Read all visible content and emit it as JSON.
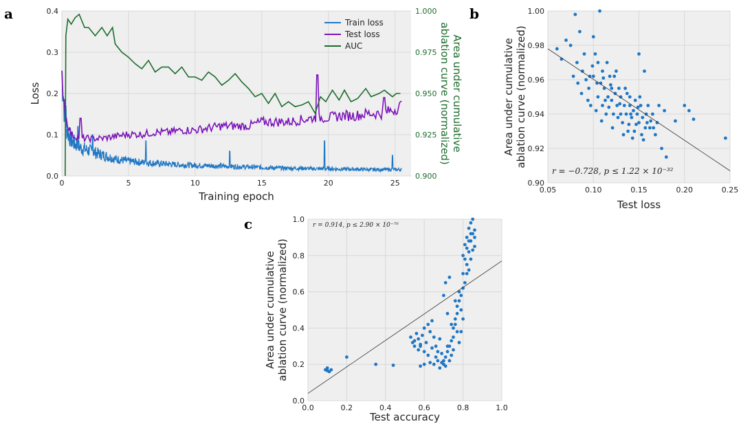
{
  "chart_data": [
    {
      "panel_label": "a",
      "type": "line",
      "xlabel": "Training epoch",
      "ylabel": "Loss",
      "y2label": "Area under cumulative ablation curve (normalized)",
      "xlim": [
        0,
        26.2
      ],
      "ylim": [
        0,
        0.4
      ],
      "y2lim": [
        0.9,
        1.0
      ],
      "xticks": [
        "0",
        "5",
        "10",
        "15",
        "20",
        "25"
      ],
      "yticks": [
        "0.0",
        "0.1",
        "0.2",
        "0.3",
        "0.4"
      ],
      "y2ticks": [
        "0.900",
        "0.925",
        "0.950",
        "0.975",
        "1.000"
      ],
      "grid": true,
      "legend_position": "top-right",
      "colors": {
        "train": "#1f77c4",
        "test": "#7a12b8",
        "auc": "#1b6b2c"
      },
      "series": [
        {
          "name": "Train loss",
          "axis": "left",
          "x": [
            0,
            0.1,
            0.2,
            0.3,
            0.5,
            0.7,
            1,
            1.5,
            2,
            2.5,
            3,
            3.5,
            4,
            5,
            6,
            7,
            8,
            9,
            10,
            11,
            12,
            13,
            14,
            15,
            16,
            17,
            18,
            19,
            20,
            21,
            22,
            23,
            24,
            25,
            25.5
          ],
          "y": [
            0.25,
            0.2,
            0.15,
            0.12,
            0.1,
            0.085,
            0.075,
            0.065,
            0.06,
            0.055,
            0.05,
            0.045,
            0.04,
            0.035,
            0.032,
            0.03,
            0.028,
            0.026,
            0.025,
            0.024,
            0.023,
            0.022,
            0.021,
            0.02,
            0.019,
            0.018,
            0.018,
            0.017,
            0.017,
            0.016,
            0.016,
            0.015,
            0.015,
            0.015,
            0.015
          ],
          "spikes": [
            [
              0.3,
              0.17
            ],
            [
              1.2,
              0.12
            ],
            [
              2.3,
              0.1
            ],
            [
              6.3,
              0.085
            ],
            [
              12.6,
              0.06
            ],
            [
              19.7,
              0.085
            ],
            [
              24.8,
              0.05
            ]
          ]
        },
        {
          "name": "Test loss",
          "axis": "left",
          "x": [
            0,
            0.1,
            0.2,
            0.3,
            0.5,
            0.7,
            1,
            1.5,
            2,
            3,
            4,
            5,
            6,
            7,
            8,
            9,
            10,
            11,
            12,
            13,
            14,
            15,
            16,
            17,
            18,
            19,
            20,
            21,
            22,
            23,
            24,
            25,
            25.5
          ],
          "y": [
            0.24,
            0.2,
            0.17,
            0.14,
            0.12,
            0.1,
            0.095,
            0.09,
            0.09,
            0.09,
            0.095,
            0.1,
            0.1,
            0.105,
            0.105,
            0.11,
            0.11,
            0.115,
            0.12,
            0.12,
            0.12,
            0.13,
            0.13,
            0.13,
            0.135,
            0.14,
            0.14,
            0.145,
            0.145,
            0.15,
            0.15,
            0.16,
            0.17
          ],
          "spikes": [
            [
              1.4,
              0.14
            ],
            [
              19.2,
              0.245
            ],
            [
              24.2,
              0.19
            ]
          ]
        },
        {
          "name": "AUC",
          "axis": "right",
          "x": [
            0.25,
            0.3,
            0.45,
            0.7,
            1.0,
            1.3,
            1.7,
            2.0,
            2.5,
            3.0,
            3.4,
            3.8,
            4.0,
            4.5,
            5.0,
            5.5,
            6.0,
            6.5,
            7.0,
            7.5,
            8.0,
            8.5,
            9.0,
            9.5,
            10.0,
            10.5,
            11.0,
            11.5,
            12.0,
            12.5,
            13.0,
            13.5,
            14.0,
            14.5,
            15.0,
            15.5,
            16.0,
            16.5,
            17.0,
            17.5,
            18.0,
            18.5,
            19.0,
            19.4,
            19.8,
            20.3,
            20.8,
            21.2,
            21.7,
            22.2,
            22.8,
            23.2,
            23.8,
            24.2,
            24.8,
            25.1,
            25.4
          ],
          "y": [
            0.9,
            0.985,
            0.995,
            0.992,
            0.996,
            0.998,
            0.99,
            0.99,
            0.985,
            0.99,
            0.985,
            0.99,
            0.98,
            0.975,
            0.972,
            0.968,
            0.965,
            0.97,
            0.963,
            0.966,
            0.966,
            0.962,
            0.966,
            0.96,
            0.96,
            0.958,
            0.963,
            0.96,
            0.955,
            0.958,
            0.962,
            0.957,
            0.953,
            0.948,
            0.95,
            0.944,
            0.95,
            0.942,
            0.945,
            0.942,
            0.943,
            0.945,
            0.938,
            0.948,
            0.945,
            0.952,
            0.946,
            0.952,
            0.945,
            0.947,
            0.953,
            0.948,
            0.95,
            0.952,
            0.948,
            0.95,
            0.95
          ]
        }
      ]
    },
    {
      "panel_label": "b",
      "type": "scatter",
      "xlabel": "Test loss",
      "ylabel": "Area under cumulative ablation curve (normalized)",
      "xlim": [
        0.05,
        0.25
      ],
      "ylim": [
        0.9,
        1.0
      ],
      "xticks": [
        "0.05",
        "0.10",
        "0.15",
        "0.20",
        "0.25"
      ],
      "yticks": [
        "0.90",
        "0.92",
        "0.94",
        "0.96",
        "0.98",
        "1.00"
      ],
      "grid": true,
      "color": "#1f77c4",
      "annotation": "r = −0.728, p ≤ 1.22 × 10⁻³²",
      "fit_line": {
        "x": [
          0.05,
          0.25
        ],
        "y": [
          0.978,
          0.907
        ]
      },
      "points": [
        [
          0.07,
          0.983
        ],
        [
          0.075,
          0.98
        ],
        [
          0.08,
          0.998
        ],
        [
          0.082,
          0.97
        ],
        [
          0.085,
          0.988
        ],
        [
          0.088,
          0.965
        ],
        [
          0.09,
          0.975
        ],
        [
          0.092,
          0.96
        ],
        [
          0.095,
          0.955
        ],
        [
          0.1,
          0.985
        ],
        [
          0.1,
          0.962
        ],
        [
          0.102,
          0.975
        ],
        [
          0.105,
          0.95
        ],
        [
          0.105,
          0.97
        ],
        [
          0.107,
          1.0
        ],
        [
          0.108,
          0.958
        ],
        [
          0.11,
          0.945
        ],
        [
          0.11,
          0.965
        ],
        [
          0.112,
          0.955
        ],
        [
          0.114,
          0.94
        ],
        [
          0.115,
          0.97
        ],
        [
          0.116,
          0.95
        ],
        [
          0.118,
          0.962
        ],
        [
          0.12,
          0.948
        ],
        [
          0.12,
          0.955
        ],
        [
          0.122,
          0.94
        ],
        [
          0.124,
          0.952
        ],
        [
          0.125,
          0.965
        ],
        [
          0.126,
          0.945
        ],
        [
          0.128,
          0.955
        ],
        [
          0.13,
          0.94
        ],
        [
          0.13,
          0.95
        ],
        [
          0.132,
          0.935
        ],
        [
          0.134,
          0.945
        ],
        [
          0.135,
          0.955
        ],
        [
          0.136,
          0.94
        ],
        [
          0.138,
          0.93
        ],
        [
          0.14,
          0.945
        ],
        [
          0.14,
          0.95
        ],
        [
          0.142,
          0.938
        ],
        [
          0.144,
          0.942
        ],
        [
          0.145,
          0.93
        ],
        [
          0.146,
          0.948
        ],
        [
          0.148,
          0.94
        ],
        [
          0.15,
          0.975
        ],
        [
          0.15,
          0.935
        ],
        [
          0.152,
          0.945
        ],
        [
          0.154,
          0.938
        ],
        [
          0.155,
          0.925
        ],
        [
          0.156,
          0.965
        ],
        [
          0.158,
          0.94
        ],
        [
          0.16,
          0.945
        ],
        [
          0.162,
          0.932
        ],
        [
          0.165,
          0.94
        ],
        [
          0.17,
          0.935
        ],
        [
          0.175,
          0.92
        ],
        [
          0.178,
          0.942
        ],
        [
          0.18,
          0.915
        ],
        [
          0.2,
          0.945
        ],
        [
          0.205,
          0.942
        ],
        [
          0.21,
          0.937
        ],
        [
          0.245,
          0.926
        ],
        [
          0.06,
          0.978
        ],
        [
          0.065,
          0.972
        ],
        [
          0.078,
          0.962
        ],
        [
          0.083,
          0.958
        ],
        [
          0.087,
          0.952
        ],
        [
          0.094,
          0.948
        ],
        [
          0.097,
          0.945
        ],
        [
          0.099,
          0.968
        ],
        [
          0.103,
          0.942
        ],
        [
          0.109,
          0.936
        ],
        [
          0.113,
          0.948
        ],
        [
          0.117,
          0.944
        ],
        [
          0.121,
          0.932
        ],
        [
          0.127,
          0.938
        ],
        [
          0.133,
          0.928
        ],
        [
          0.139,
          0.934
        ],
        [
          0.143,
          0.926
        ],
        [
          0.149,
          0.944
        ],
        [
          0.153,
          0.928
        ],
        [
          0.157,
          0.932
        ],
        [
          0.163,
          0.936
        ],
        [
          0.168,
          0.928
        ],
        [
          0.172,
          0.945
        ],
        [
          0.19,
          0.936
        ],
        [
          0.096,
          0.962
        ],
        [
          0.104,
          0.958
        ],
        [
          0.111,
          0.961
        ],
        [
          0.119,
          0.957
        ],
        [
          0.123,
          0.962
        ],
        [
          0.129,
          0.946
        ],
        [
          0.137,
          0.952
        ],
        [
          0.141,
          0.94
        ],
        [
          0.147,
          0.934
        ],
        [
          0.151,
          0.95
        ],
        [
          0.159,
          0.935
        ],
        [
          0.166,
          0.932
        ]
      ]
    },
    {
      "panel_label": "c",
      "type": "scatter",
      "xlabel": "Test accuracy",
      "ylabel": "Area under cumulative ablation curve (normalized)",
      "xlim": [
        0.0,
        1.0
      ],
      "ylim": [
        0.0,
        1.0
      ],
      "xticks": [
        "0.0",
        "0.2",
        "0.4",
        "0.6",
        "0.8",
        "1.0"
      ],
      "yticks": [
        "0.0",
        "0.2",
        "0.4",
        "0.6",
        "0.8",
        "1.0"
      ],
      "grid": true,
      "color": "#1f77c4",
      "annotation": "r = 0.914, p ≤ 2.90 × 10⁻⁷⁶",
      "fit_line": {
        "x": [
          0.0,
          1.0
        ],
        "y": [
          0.04,
          0.77
        ]
      },
      "points": [
        [
          0.09,
          0.17
        ],
        [
          0.1,
          0.18
        ],
        [
          0.11,
          0.16
        ],
        [
          0.1,
          0.165
        ],
        [
          0.12,
          0.17
        ],
        [
          0.2,
          0.24
        ],
        [
          0.35,
          0.2
        ],
        [
          0.44,
          0.195
        ],
        [
          0.53,
          0.35
        ],
        [
          0.55,
          0.33
        ],
        [
          0.56,
          0.37
        ],
        [
          0.57,
          0.34
        ],
        [
          0.58,
          0.3
        ],
        [
          0.58,
          0.19
        ],
        [
          0.6,
          0.2
        ],
        [
          0.6,
          0.4
        ],
        [
          0.62,
          0.42
        ],
        [
          0.63,
          0.21
        ],
        [
          0.64,
          0.44
        ],
        [
          0.65,
          0.2
        ],
        [
          0.66,
          0.3
        ],
        [
          0.67,
          0.22
        ],
        [
          0.68,
          0.34
        ],
        [
          0.69,
          0.26
        ],
        [
          0.7,
          0.2
        ],
        [
          0.7,
          0.58
        ],
        [
          0.71,
          0.65
        ],
        [
          0.72,
          0.3
        ],
        [
          0.72,
          0.48
        ],
        [
          0.73,
          0.68
        ],
        [
          0.74,
          0.25
        ],
        [
          0.74,
          0.42
        ],
        [
          0.75,
          0.35
        ],
        [
          0.76,
          0.45
        ],
        [
          0.76,
          0.55
        ],
        [
          0.77,
          0.38
        ],
        [
          0.78,
          0.6
        ],
        [
          0.78,
          0.32
        ],
        [
          0.79,
          0.5
        ],
        [
          0.8,
          0.7
        ],
        [
          0.8,
          0.8
        ],
        [
          0.81,
          0.86
        ],
        [
          0.81,
          0.65
        ],
        [
          0.82,
          0.9
        ],
        [
          0.82,
          0.75
        ],
        [
          0.83,
          0.95
        ],
        [
          0.83,
          0.82
        ],
        [
          0.84,
          0.98
        ],
        [
          0.84,
          0.88
        ],
        [
          0.85,
          0.92
        ],
        [
          0.85,
          1.0
        ],
        [
          0.86,
          0.85
        ],
        [
          0.86,
          0.94
        ],
        [
          0.8,
          0.45
        ],
        [
          0.79,
          0.38
        ],
        [
          0.77,
          0.52
        ],
        [
          0.75,
          0.28
        ],
        [
          0.73,
          0.22
        ],
        [
          0.71,
          0.19
        ],
        [
          0.69,
          0.21
        ],
        [
          0.67,
          0.27
        ],
        [
          0.65,
          0.35
        ],
        [
          0.63,
          0.38
        ],
        [
          0.61,
          0.32
        ],
        [
          0.59,
          0.36
        ],
        [
          0.57,
          0.28
        ],
        [
          0.55,
          0.3
        ],
        [
          0.54,
          0.32
        ],
        [
          0.82,
          0.7
        ],
        [
          0.83,
          0.72
        ],
        [
          0.84,
          0.78
        ],
        [
          0.85,
          0.83
        ],
        [
          0.86,
          0.9
        ],
        [
          0.84,
          0.92
        ],
        [
          0.83,
          0.88
        ],
        [
          0.82,
          0.84
        ],
        [
          0.81,
          0.78
        ],
        [
          0.8,
          0.62
        ],
        [
          0.79,
          0.58
        ],
        [
          0.78,
          0.55
        ],
        [
          0.77,
          0.48
        ],
        [
          0.76,
          0.42
        ],
        [
          0.75,
          0.4
        ],
        [
          0.74,
          0.33
        ],
        [
          0.73,
          0.3
        ],
        [
          0.72,
          0.27
        ],
        [
          0.71,
          0.24
        ],
        [
          0.7,
          0.22
        ],
        [
          0.68,
          0.18
        ],
        [
          0.66,
          0.24
        ],
        [
          0.64,
          0.29
        ],
        [
          0.62,
          0.25
        ],
        [
          0.6,
          0.27
        ],
        [
          0.58,
          0.31
        ]
      ]
    }
  ]
}
